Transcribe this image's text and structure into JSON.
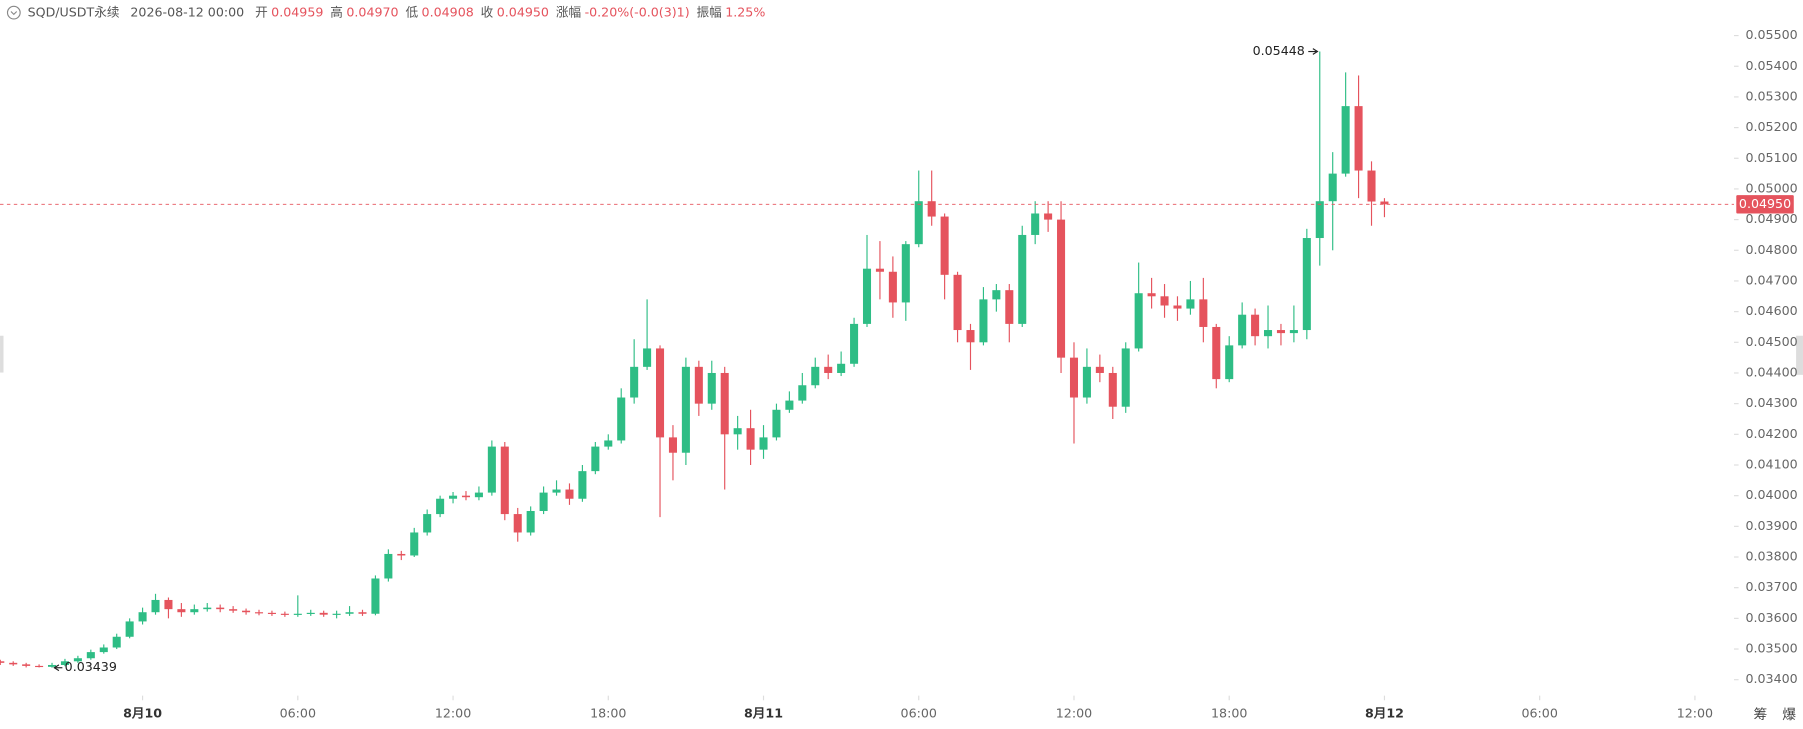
{
  "chart_data": {
    "type": "candlestick",
    "info": {
      "symbol": "SQD/USDT永续",
      "time": "2026-08-12 00:00",
      "items": [
        {
          "label": "开",
          "value": "0.04959"
        },
        {
          "label": "高",
          "value": "0.04970"
        },
        {
          "label": "低",
          "value": "0.04908"
        },
        {
          "label": "收",
          "value": "0.04950"
        },
        {
          "label": "涨幅",
          "value": "-0.20%(-0.0(3)1)"
        },
        {
          "label": "振幅",
          "value": "1.25%"
        }
      ]
    },
    "up_color": "#2ebd85",
    "down_color": "#e5535d",
    "open": [
      0.0346,
      0.03455,
      0.0345,
      0.03445,
      0.03442,
      0.03448,
      0.0346,
      0.0347,
      0.0349,
      0.03505,
      0.0354,
      0.0359,
      0.0362,
      0.0366,
      0.0363,
      0.0362,
      0.0363,
      0.03635,
      0.0363,
      0.03625,
      0.0362,
      0.03618,
      0.03615,
      0.03612,
      0.03615,
      0.03618,
      0.03612,
      0.03615,
      0.0362,
      0.03615,
      0.0373,
      0.0381,
      0.03805,
      0.0388,
      0.0394,
      0.0399,
      0.04,
      0.03995,
      0.0401,
      0.0416,
      0.0394,
      0.0388,
      0.0395,
      0.0401,
      0.0402,
      0.0399,
      0.0408,
      0.0416,
      0.0418,
      0.0432,
      0.0442,
      0.0448,
      0.0419,
      0.0414,
      0.0442,
      0.043,
      0.044,
      0.042,
      0.0422,
      0.0415,
      0.0419,
      0.0428,
      0.0431,
      0.0436,
      0.0442,
      0.044,
      0.0443,
      0.0456,
      0.0474,
      0.0473,
      0.0463,
      0.0482,
      0.0496,
      0.0491,
      0.0472,
      0.0454,
      0.045,
      0.0464,
      0.0467,
      0.0456,
      0.0485,
      0.0492,
      0.049,
      0.0445,
      0.0432,
      0.0442,
      0.044,
      0.0429,
      0.0448,
      0.0466,
      0.0465,
      0.0462,
      0.0461,
      0.0464,
      0.0455,
      0.0438,
      0.0449,
      0.0459,
      0.0452,
      0.0454,
      0.0453,
      0.0454,
      0.0484,
      0.0496,
      0.0505,
      0.0527,
      0.0506,
      0.04959
    ],
    "high": [
      0.03465,
      0.0346,
      0.03455,
      0.0345,
      0.03455,
      0.03468,
      0.03478,
      0.03498,
      0.03515,
      0.0355,
      0.036,
      0.03635,
      0.0368,
      0.03668,
      0.0365,
      0.03645,
      0.0365,
      0.03645,
      0.0364,
      0.03632,
      0.03628,
      0.03625,
      0.03622,
      0.03675,
      0.03628,
      0.03625,
      0.03625,
      0.0364,
      0.03628,
      0.0374,
      0.03825,
      0.0382,
      0.03895,
      0.03955,
      0.04,
      0.04012,
      0.04015,
      0.0403,
      0.0418,
      0.04175,
      0.0396,
      0.03965,
      0.0403,
      0.0405,
      0.0404,
      0.041,
      0.04175,
      0.042,
      0.0435,
      0.0451,
      0.0464,
      0.0449,
      0.0423,
      0.0445,
      0.0444,
      0.0444,
      0.0442,
      0.0426,
      0.0428,
      0.0423,
      0.043,
      0.0434,
      0.044,
      0.0445,
      0.0446,
      0.0447,
      0.0458,
      0.0485,
      0.0483,
      0.0478,
      0.0483,
      0.0506,
      0.0506,
      0.0492,
      0.0473,
      0.0456,
      0.0468,
      0.0469,
      0.0469,
      0.0488,
      0.0496,
      0.0496,
      0.0496,
      0.045,
      0.0448,
      0.0446,
      0.0442,
      0.045,
      0.0476,
      0.0471,
      0.0469,
      0.0465,
      0.047,
      0.0471,
      0.0456,
      0.0452,
      0.0463,
      0.0461,
      0.0462,
      0.0456,
      0.0462,
      0.0487,
      0.05448,
      0.0512,
      0.0538,
      0.0537,
      0.0509,
      0.0497
    ],
    "low": [
      0.03448,
      0.03445,
      0.0344,
      0.0344,
      0.03439,
      0.03444,
      0.03455,
      0.03465,
      0.03485,
      0.035,
      0.03535,
      0.0358,
      0.03612,
      0.036,
      0.03605,
      0.03612,
      0.03622,
      0.0362,
      0.03618,
      0.03612,
      0.0361,
      0.03608,
      0.03605,
      0.03605,
      0.03608,
      0.03605,
      0.036,
      0.03608,
      0.03608,
      0.0361,
      0.0372,
      0.0379,
      0.038,
      0.0387,
      0.0393,
      0.03975,
      0.03985,
      0.03985,
      0.04,
      0.0392,
      0.0385,
      0.0387,
      0.0394,
      0.04,
      0.0397,
      0.0398,
      0.0407,
      0.0415,
      0.0417,
      0.043,
      0.0441,
      0.0393,
      0.0405,
      0.041,
      0.0426,
      0.0428,
      0.0402,
      0.0415,
      0.041,
      0.0412,
      0.0418,
      0.0427,
      0.043,
      0.0435,
      0.0438,
      0.0439,
      0.0442,
      0.0455,
      0.0464,
      0.0458,
      0.0457,
      0.0481,
      0.0488,
      0.0464,
      0.045,
      0.0441,
      0.0449,
      0.046,
      0.045,
      0.0455,
      0.0482,
      0.0486,
      0.044,
      0.0417,
      0.043,
      0.0437,
      0.0425,
      0.0427,
      0.0447,
      0.0461,
      0.0458,
      0.0457,
      0.0459,
      0.045,
      0.0435,
      0.0437,
      0.0448,
      0.0449,
      0.0448,
      0.0449,
      0.045,
      0.0451,
      0.0475,
      0.048,
      0.0504,
      0.0497,
      0.0488,
      0.04908
    ],
    "close": [
      0.03455,
      0.0345,
      0.03445,
      0.03442,
      0.03448,
      0.0346,
      0.0347,
      0.0349,
      0.03505,
      0.0354,
      0.0359,
      0.0362,
      0.0366,
      0.0363,
      0.0362,
      0.0363,
      0.03635,
      0.0363,
      0.03625,
      0.0362,
      0.03618,
      0.03615,
      0.03612,
      0.03615,
      0.03618,
      0.03612,
      0.03615,
      0.0362,
      0.03615,
      0.0373,
      0.0381,
      0.03805,
      0.0388,
      0.0394,
      0.0399,
      0.04,
      0.03995,
      0.0401,
      0.0416,
      0.0394,
      0.0388,
      0.0395,
      0.0401,
      0.0402,
      0.0399,
      0.0408,
      0.0416,
      0.0418,
      0.0432,
      0.0442,
      0.0448,
      0.0419,
      0.0414,
      0.0442,
      0.043,
      0.044,
      0.042,
      0.0422,
      0.0415,
      0.0419,
      0.0428,
      0.0431,
      0.0436,
      0.0442,
      0.044,
      0.0443,
      0.0456,
      0.0474,
      0.0473,
      0.0463,
      0.0482,
      0.0496,
      0.0491,
      0.0472,
      0.0454,
      0.045,
      0.0464,
      0.0467,
      0.0456,
      0.0485,
      0.0492,
      0.049,
      0.0445,
      0.0432,
      0.0442,
      0.044,
      0.0429,
      0.0448,
      0.0466,
      0.0465,
      0.0462,
      0.0461,
      0.0464,
      0.0455,
      0.0438,
      0.0449,
      0.0459,
      0.0452,
      0.0454,
      0.0453,
      0.0454,
      0.0484,
      0.0496,
      0.0505,
      0.0527,
      0.0506,
      0.04959,
      0.0495
    ],
    "max_marker": 102,
    "min_marker": 4,
    "current_price": {
      "value": 0.0495,
      "label": "0.04950"
    },
    "xlim": [
      -0.02,
      134.02
    ],
    "xticks": [
      {
        "value": 11,
        "label": "8月10"
      },
      {
        "value": 23,
        "label": "06:00"
      },
      {
        "value": 35,
        "label": "12:00"
      },
      {
        "value": 47,
        "label": "18:00"
      },
      {
        "value": 59,
        "label": "8月11"
      },
      {
        "value": 71,
        "label": "06:00"
      },
      {
        "value": 83,
        "label": "12:00"
      },
      {
        "value": 95,
        "label": "18:00"
      },
      {
        "value": 107,
        "label": "8月12"
      },
      {
        "value": 119,
        "label": "06:00"
      },
      {
        "value": 131,
        "label": "12:00"
      }
    ],
    "ylim": [
      0.03348,
      0.05616
    ],
    "yticks": [
      {
        "value": 0.055,
        "label": "0.05500"
      },
      {
        "value": 0.054,
        "label": "0.05400"
      },
      {
        "value": 0.053,
        "label": "0.05300"
      },
      {
        "value": 0.052,
        "label": "0.05200"
      },
      {
        "value": 0.051,
        "label": "0.05100"
      },
      {
        "value": 0.05,
        "label": "0.05000"
      },
      {
        "value": 0.049,
        "label": "0.04900"
      },
      {
        "value": 0.048,
        "label": "0.04800"
      },
      {
        "value": 0.047,
        "label": "0.04700"
      },
      {
        "value": 0.046,
        "label": "0.04600"
      },
      {
        "value": 0.045,
        "label": "0.04500"
      },
      {
        "value": 0.044,
        "label": "0.04400"
      },
      {
        "value": 0.043,
        "label": "0.04300"
      },
      {
        "value": 0.042,
        "label": "0.04200"
      },
      {
        "value": 0.041,
        "label": "0.04100"
      },
      {
        "value": 0.04,
        "label": "0.04000"
      },
      {
        "value": 0.039,
        "label": "0.03900"
      },
      {
        "value": 0.038,
        "label": "0.03800"
      },
      {
        "value": 0.037,
        "label": "0.03700"
      },
      {
        "value": 0.036,
        "label": "0.03600"
      },
      {
        "value": 0.035,
        "label": "0.03500"
      },
      {
        "value": 0.034,
        "label": "0.03400"
      }
    ],
    "grid": false,
    "tools": [
      "筹",
      "爆"
    ]
  }
}
